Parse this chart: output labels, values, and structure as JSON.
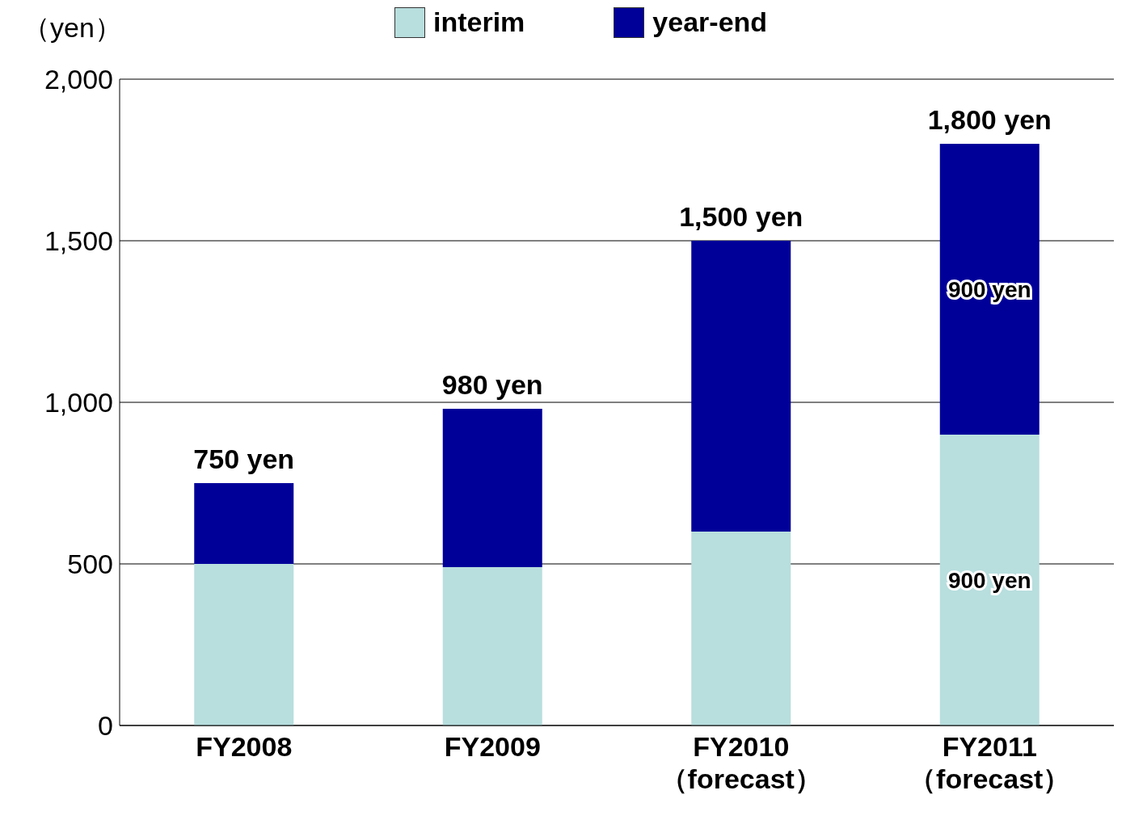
{
  "chart_data": {
    "type": "bar",
    "stacked": true,
    "ylabel": "（yen）",
    "categories": [
      "FY2008",
      "FY2009",
      "FY2010\n（forecast）",
      "FY2011\n（forecast）"
    ],
    "series": [
      {
        "name": "interim",
        "color": "#b8dede",
        "values": [
          500,
          490,
          600,
          900
        ],
        "value_labels": [
          null,
          null,
          null,
          "900 yen"
        ]
      },
      {
        "name": "year-end",
        "color": "#000099",
        "values": [
          250,
          490,
          900,
          900
        ],
        "value_labels": [
          null,
          null,
          null,
          "900 yen"
        ]
      }
    ],
    "totals": [
      "750 yen",
      "980 yen",
      "1,500 yen",
      "1,800 yen"
    ],
    "ylim": [
      0,
      2000
    ],
    "yticks": [
      {
        "value": 0,
        "label": "0"
      },
      {
        "value": 500,
        "label": "500"
      },
      {
        "value": 1000,
        "label": "1,000"
      },
      {
        "value": 1500,
        "label": "1,500"
      },
      {
        "value": 2000,
        "label": "2,000"
      }
    ],
    "grid": "y",
    "legend": "top"
  }
}
